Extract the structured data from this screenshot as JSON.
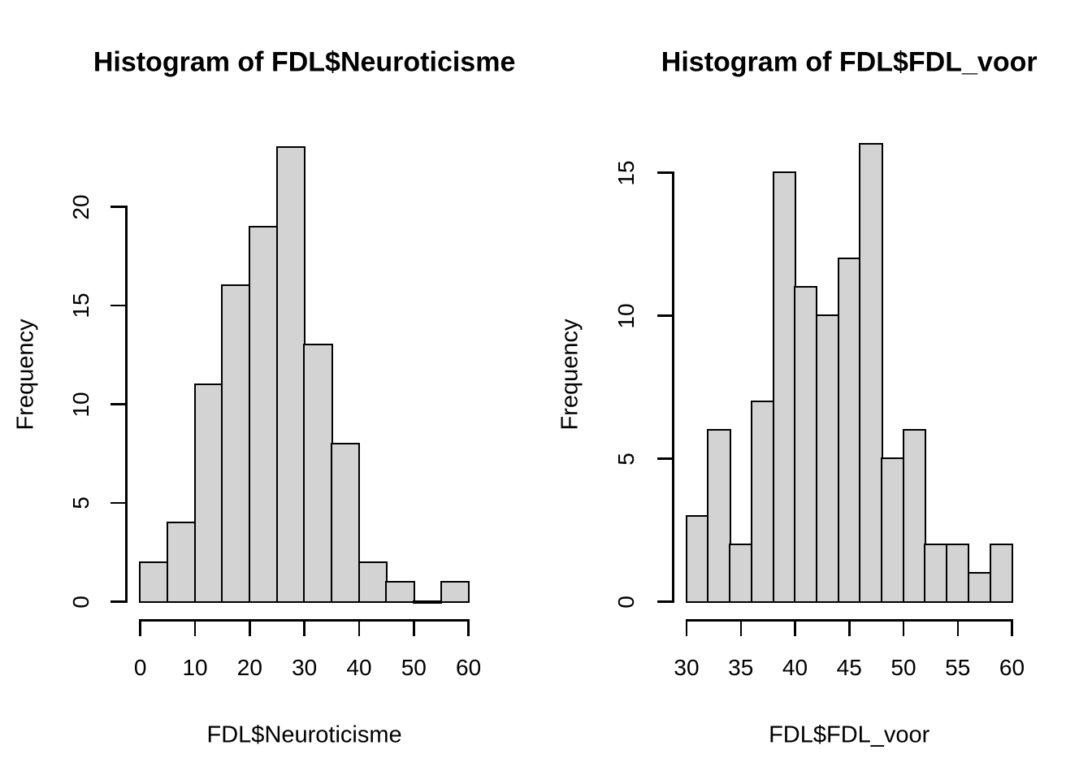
{
  "figure": {
    "background": "#ffffff",
    "bar_fill": "#d3d3d3",
    "bar_border": "#000000",
    "axis_color": "#000000",
    "text_color": "#000000"
  },
  "chart_data": [
    {
      "type": "bar",
      "subtype": "histogram",
      "title": "Histogram of FDL$Neuroticisme",
      "xlabel": "FDL$Neuroticisme",
      "ylabel": "Frequency",
      "bin_edges": [
        0,
        5,
        10,
        15,
        20,
        25,
        30,
        35,
        40,
        45,
        50,
        55,
        60
      ],
      "values": [
        2,
        4,
        11,
        16,
        19,
        23,
        13,
        8,
        2,
        1,
        0,
        1
      ],
      "x_ticks": [
        0,
        10,
        20,
        30,
        40,
        50,
        60
      ],
      "y_ticks": [
        0,
        5,
        10,
        15,
        20
      ],
      "xlim": [
        0,
        60
      ],
      "ylim": [
        0,
        23
      ],
      "grid": false,
      "legend": "none"
    },
    {
      "type": "bar",
      "subtype": "histogram",
      "title": "Histogram of FDL$FDL_voor",
      "xlabel": "FDL$FDL_voor",
      "ylabel": "Frequency",
      "bin_edges": [
        30,
        32,
        34,
        36,
        38,
        40,
        42,
        44,
        46,
        48,
        50,
        52,
        54,
        56,
        58,
        60
      ],
      "values": [
        3,
        6,
        2,
        7,
        15,
        11,
        10,
        12,
        16,
        5,
        6,
        2,
        2,
        1,
        2
      ],
      "x_ticks": [
        30,
        35,
        40,
        45,
        50,
        55,
        60
      ],
      "y_ticks": [
        0,
        5,
        10,
        15
      ],
      "xlim": [
        30,
        60
      ],
      "ylim": [
        0,
        16
      ],
      "grid": false,
      "legend": "none"
    }
  ]
}
